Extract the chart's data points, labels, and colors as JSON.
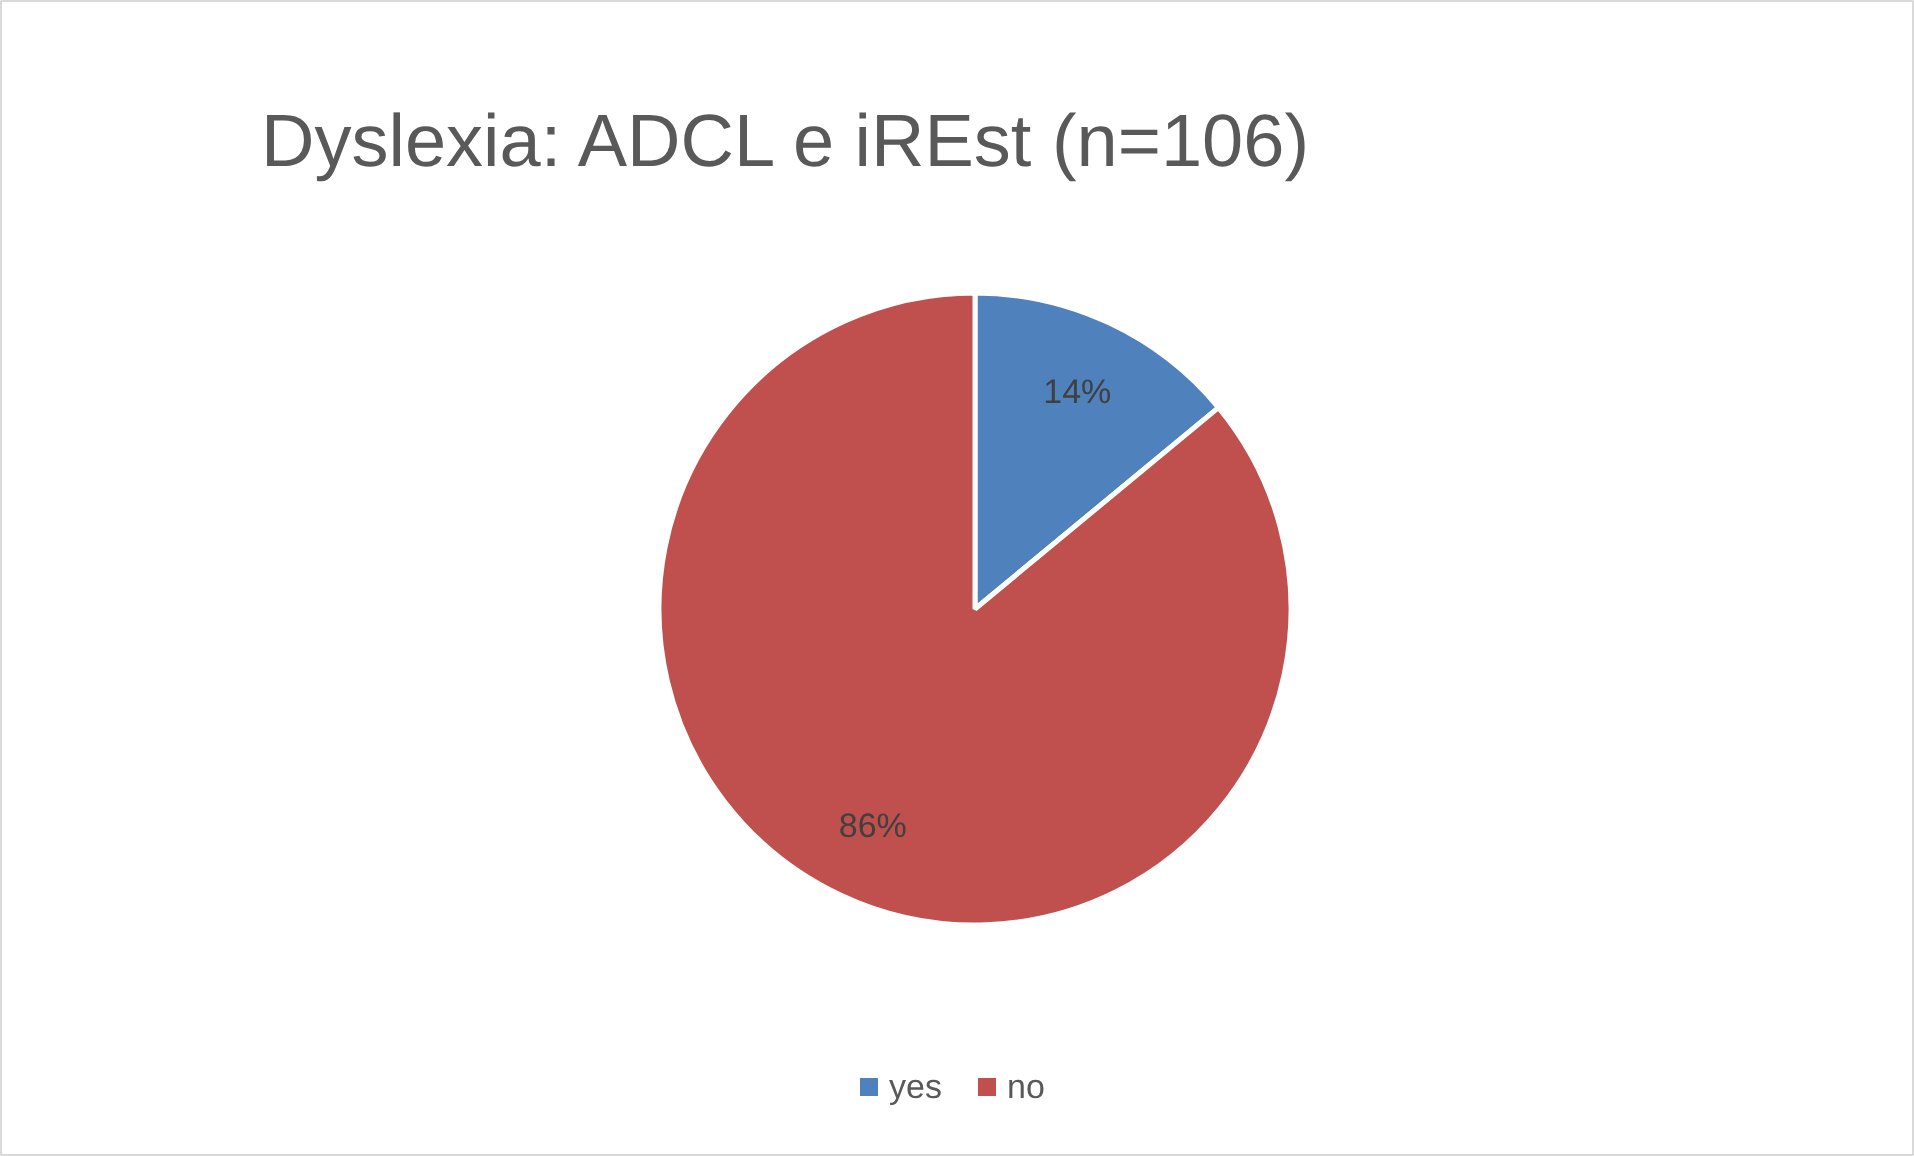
{
  "chart_data": {
    "type": "pie",
    "title": "Dyslexia: ADCL e iREst (n=106)",
    "categories": [
      "yes",
      "no"
    ],
    "values": [
      14,
      86
    ],
    "colors": [
      "#4f81bd",
      "#c0504d"
    ],
    "value_labels": [
      "14%",
      "86%"
    ],
    "legend": "bottom"
  }
}
